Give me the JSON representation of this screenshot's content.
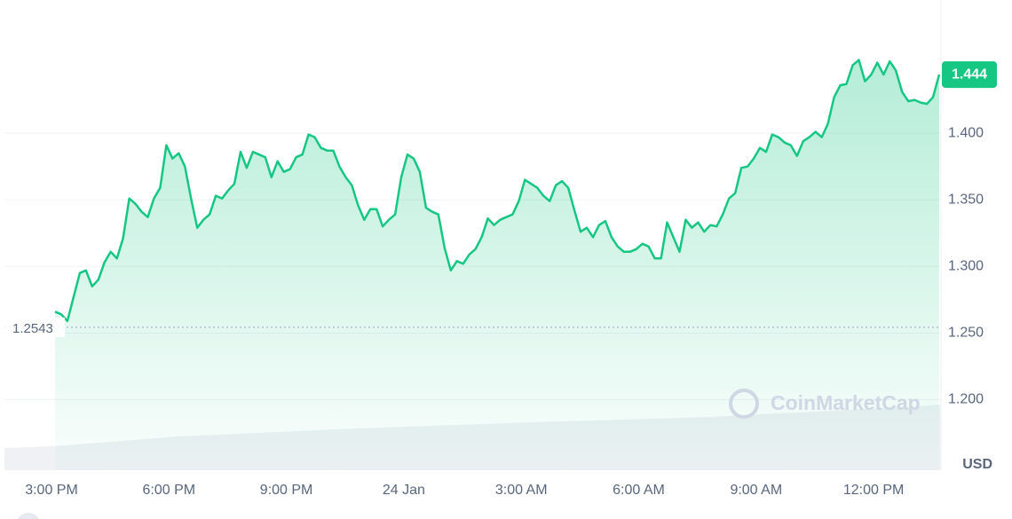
{
  "chart_data": {
    "type": "line",
    "series": [
      {
        "name": "Price",
        "color": "#16c784",
        "values": [
          1.266,
          1.264,
          1.259,
          1.277,
          1.295,
          1.297,
          1.285,
          1.29,
          1.303,
          1.311,
          1.306,
          1.321,
          1.351,
          1.347,
          1.341,
          1.337,
          1.351,
          1.359,
          1.391,
          1.381,
          1.385,
          1.375,
          1.351,
          1.329,
          1.335,
          1.339,
          1.353,
          1.351,
          1.357,
          1.362,
          1.386,
          1.374,
          1.386,
          1.384,
          1.382,
          1.367,
          1.379,
          1.371,
          1.373,
          1.382,
          1.384,
          1.399,
          1.397,
          1.389,
          1.387,
          1.387,
          1.375,
          1.367,
          1.361,
          1.346,
          1.335,
          1.343,
          1.343,
          1.33,
          1.335,
          1.339,
          1.367,
          1.384,
          1.381,
          1.371,
          1.344,
          1.341,
          1.339,
          1.314,
          1.297,
          1.304,
          1.302,
          1.309,
          1.313,
          1.322,
          1.336,
          1.331,
          1.335,
          1.337,
          1.339,
          1.349,
          1.365,
          1.362,
          1.359,
          1.353,
          1.349,
          1.361,
          1.364,
          1.359,
          1.342,
          1.326,
          1.329,
          1.322,
          1.331,
          1.334,
          1.322,
          1.315,
          1.311,
          1.311,
          1.313,
          1.317,
          1.315,
          1.306,
          1.306,
          1.333,
          1.322,
          1.311,
          1.335,
          1.329,
          1.333,
          1.326,
          1.331,
          1.33,
          1.339,
          1.351,
          1.355,
          1.374,
          1.375,
          1.381,
          1.389,
          1.386,
          1.399,
          1.397,
          1.393,
          1.391,
          1.383,
          1.394,
          1.397,
          1.401,
          1.397,
          1.407,
          1.427,
          1.436,
          1.437,
          1.451,
          1.455,
          1.439,
          1.444,
          1.453,
          1.444,
          1.454,
          1.447,
          1.431,
          1.424,
          1.425,
          1.423,
          1.422,
          1.427,
          1.444
        ]
      }
    ],
    "xticks": [
      "3:00 PM",
      "6:00 PM",
      "9:00 PM",
      "24 Jan",
      "3:00 AM",
      "6:00 AM",
      "9:00 AM",
      "12:00 PM"
    ],
    "ylim": [
      1.147,
      1.5
    ],
    "yticks": [
      {
        "value": 1.2,
        "label": "1.200"
      },
      {
        "value": 1.25,
        "label": "1.250"
      },
      {
        "value": 1.3,
        "label": "1.300"
      },
      {
        "value": 1.35,
        "label": "1.350"
      },
      {
        "value": 1.4,
        "label": "1.400"
      }
    ],
    "grid": true,
    "y_label": "USD",
    "baseline": 1.2543,
    "baseline_label": "1.2543",
    "last_label": "1.444",
    "watermark": "CoinMarketCap"
  }
}
